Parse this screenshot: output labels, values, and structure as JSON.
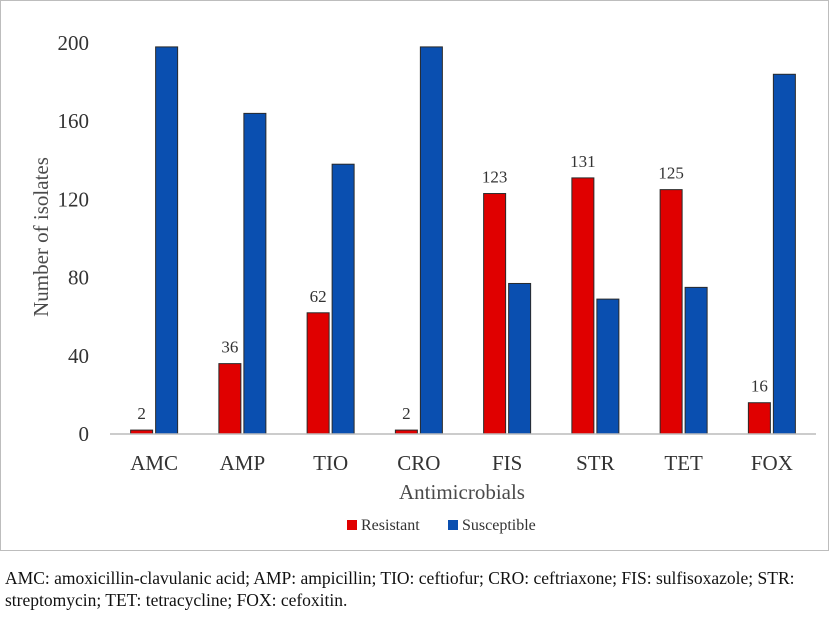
{
  "chart_data": {
    "type": "bar",
    "title": "",
    "xlabel": "Antimicrobials",
    "ylabel": "Number of isolates",
    "ylim": [
      0,
      200
    ],
    "yticks": [
      "0",
      "40",
      "80",
      "120",
      "160",
      "200"
    ],
    "categories": [
      "AMC",
      "AMP",
      "TIO",
      "CRO",
      "FIS",
      "STR",
      "TET",
      "FOX"
    ],
    "series": [
      {
        "name": "Resistant",
        "color": "#e00000",
        "values": [
          2,
          36,
          62,
          2,
          123,
          131,
          125,
          16
        ],
        "labels": [
          "2",
          "36",
          "62",
          "2",
          "123",
          "131",
          "125",
          "16"
        ]
      },
      {
        "name": "Susceptible",
        "color": "#0a4fb0",
        "values": [
          198,
          164,
          138,
          198,
          77,
          69,
          75,
          184
        ]
      }
    ],
    "legend_position": "bottom",
    "grid": false
  },
  "caption": "AMC: amoxicillin-clavulanic acid; AMP: ampicillin; TIO: ceftiofur; CRO: ceftriaxone; FIS: sulfisoxazole; STR: streptomycin; TET: tetracycline; FOX: cefoxitin."
}
